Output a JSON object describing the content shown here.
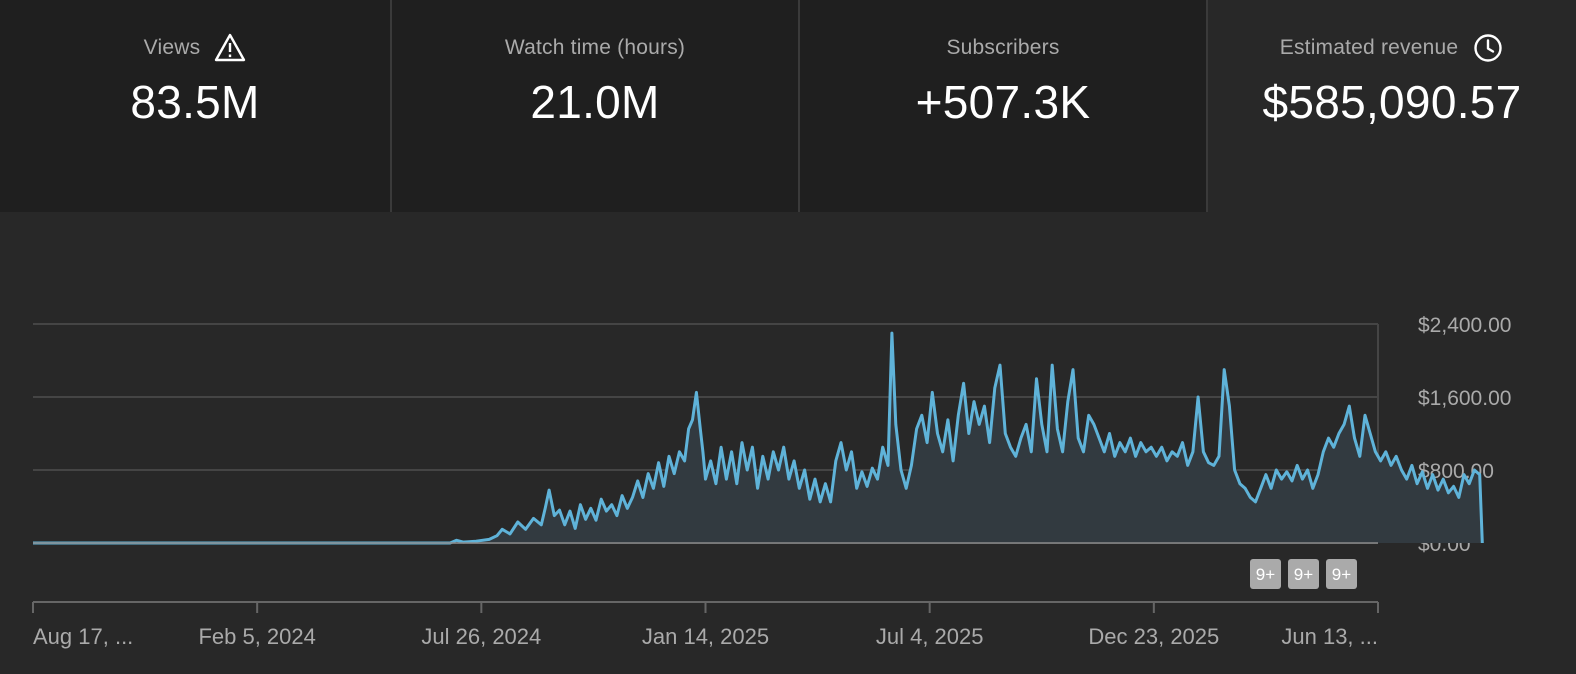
{
  "metrics": [
    {
      "label": "Views",
      "value": "83.5M",
      "icon": "warning-icon"
    },
    {
      "label": "Watch time (hours)",
      "value": "21.0M",
      "icon": ""
    },
    {
      "label": "Subscribers",
      "value": "+507.3K",
      "icon": ""
    },
    {
      "label": "Estimated revenue",
      "value": "$585,090.57",
      "icon": "clock-icon",
      "selected": true
    }
  ],
  "colors": {
    "line": "#5fb3d9",
    "area": "#323a40",
    "grid": "#454545",
    "text": "#aaaaaa",
    "badge_bg": "#aaaaaa",
    "badge_text": "#ffffff"
  },
  "badges": [
    "9+",
    "9+",
    "9+"
  ],
  "chart_data": {
    "type": "area",
    "ylim": [
      0,
      2400
    ],
    "y_ticks": [
      "$0.00",
      "$800.00",
      "$1,600.00",
      "$2,400.00"
    ],
    "x_ticks": [
      "Aug 17, ...",
      "Feb 5, 2024",
      "Jul 26, 2024",
      "Jan 14, 2025",
      "Jul 4, 2025",
      "Dec 23, 2025",
      "Jun 13, ..."
    ],
    "x_tick_days": [
      0,
      172,
      344,
      516,
      688,
      860,
      1032
    ],
    "grid": true,
    "series": [
      {
        "points": [
          [
            0,
            0
          ],
          [
            320,
            0
          ],
          [
            325,
            30
          ],
          [
            330,
            10
          ],
          [
            340,
            20
          ],
          [
            350,
            40
          ],
          [
            356,
            80
          ],
          [
            360,
            150
          ],
          [
            366,
            100
          ],
          [
            372,
            230
          ],
          [
            378,
            150
          ],
          [
            384,
            270
          ],
          [
            390,
            200
          ],
          [
            393,
            380
          ],
          [
            396,
            580
          ],
          [
            400,
            300
          ],
          [
            404,
            360
          ],
          [
            408,
            200
          ],
          [
            412,
            350
          ],
          [
            416,
            160
          ],
          [
            420,
            420
          ],
          [
            424,
            260
          ],
          [
            428,
            380
          ],
          [
            432,
            250
          ],
          [
            436,
            480
          ],
          [
            440,
            350
          ],
          [
            444,
            420
          ],
          [
            448,
            300
          ],
          [
            452,
            520
          ],
          [
            456,
            380
          ],
          [
            460,
            500
          ],
          [
            464,
            680
          ],
          [
            468,
            500
          ],
          [
            472,
            760
          ],
          [
            476,
            600
          ],
          [
            480,
            880
          ],
          [
            484,
            620
          ],
          [
            488,
            950
          ],
          [
            492,
            760
          ],
          [
            496,
            1000
          ],
          [
            500,
            900
          ],
          [
            503,
            1250
          ],
          [
            506,
            1350
          ],
          [
            509,
            1650
          ],
          [
            512,
            1250
          ],
          [
            514,
            1000
          ],
          [
            516,
            700
          ],
          [
            520,
            900
          ],
          [
            524,
            650
          ],
          [
            528,
            1050
          ],
          [
            532,
            700
          ],
          [
            536,
            1000
          ],
          [
            540,
            650
          ],
          [
            544,
            1100
          ],
          [
            548,
            800
          ],
          [
            552,
            1050
          ],
          [
            556,
            600
          ],
          [
            560,
            950
          ],
          [
            564,
            700
          ],
          [
            568,
            1000
          ],
          [
            572,
            800
          ],
          [
            576,
            1050
          ],
          [
            580,
            700
          ],
          [
            584,
            900
          ],
          [
            588,
            600
          ],
          [
            592,
            800
          ],
          [
            596,
            480
          ],
          [
            600,
            700
          ],
          [
            604,
            450
          ],
          [
            608,
            650
          ],
          [
            612,
            450
          ],
          [
            616,
            900
          ],
          [
            620,
            1100
          ],
          [
            624,
            800
          ],
          [
            628,
            1000
          ],
          [
            632,
            600
          ],
          [
            636,
            780
          ],
          [
            640,
            620
          ],
          [
            644,
            820
          ],
          [
            648,
            700
          ],
          [
            652,
            1050
          ],
          [
            656,
            850
          ],
          [
            659,
            2300
          ],
          [
            662,
            1300
          ],
          [
            666,
            800
          ],
          [
            670,
            600
          ],
          [
            674,
            850
          ],
          [
            678,
            1250
          ],
          [
            682,
            1400
          ],
          [
            686,
            1100
          ],
          [
            690,
            1650
          ],
          [
            694,
            1200
          ],
          [
            698,
            1000
          ],
          [
            702,
            1350
          ],
          [
            706,
            900
          ],
          [
            710,
            1400
          ],
          [
            714,
            1750
          ],
          [
            718,
            1200
          ],
          [
            722,
            1550
          ],
          [
            726,
            1300
          ],
          [
            730,
            1500
          ],
          [
            734,
            1100
          ],
          [
            738,
            1700
          ],
          [
            742,
            1950
          ],
          [
            746,
            1200
          ],
          [
            750,
            1050
          ],
          [
            754,
            950
          ],
          [
            758,
            1150
          ],
          [
            762,
            1300
          ],
          [
            766,
            1000
          ],
          [
            770,
            1800
          ],
          [
            774,
            1300
          ],
          [
            778,
            1000
          ],
          [
            782,
            1950
          ],
          [
            786,
            1250
          ],
          [
            790,
            1000
          ],
          [
            794,
            1550
          ],
          [
            798,
            1900
          ],
          [
            802,
            1150
          ],
          [
            806,
            1000
          ],
          [
            810,
            1400
          ],
          [
            814,
            1300
          ],
          [
            818,
            1150
          ],
          [
            822,
            1000
          ],
          [
            826,
            1200
          ],
          [
            830,
            950
          ],
          [
            834,
            1100
          ],
          [
            838,
            1000
          ],
          [
            842,
            1150
          ],
          [
            846,
            950
          ],
          [
            850,
            1100
          ],
          [
            854,
            1000
          ],
          [
            858,
            1050
          ],
          [
            862,
            950
          ],
          [
            866,
            1050
          ],
          [
            870,
            900
          ],
          [
            874,
            1000
          ],
          [
            878,
            950
          ],
          [
            882,
            1100
          ],
          [
            886,
            850
          ],
          [
            890,
            1000
          ],
          [
            894,
            1600
          ],
          [
            898,
            1000
          ],
          [
            902,
            880
          ],
          [
            906,
            850
          ],
          [
            910,
            950
          ],
          [
            914,
            1900
          ],
          [
            918,
            1500
          ],
          [
            922,
            800
          ],
          [
            926,
            650
          ],
          [
            930,
            600
          ],
          [
            934,
            500
          ],
          [
            938,
            450
          ],
          [
            942,
            600
          ],
          [
            946,
            750
          ],
          [
            950,
            600
          ],
          [
            954,
            800
          ],
          [
            958,
            700
          ],
          [
            962,
            780
          ],
          [
            966,
            680
          ],
          [
            970,
            850
          ],
          [
            974,
            700
          ],
          [
            978,
            800
          ],
          [
            982,
            600
          ],
          [
            986,
            750
          ],
          [
            990,
            1000
          ],
          [
            994,
            1150
          ],
          [
            998,
            1050
          ],
          [
            1002,
            1200
          ],
          [
            1006,
            1300
          ],
          [
            1010,
            1500
          ],
          [
            1014,
            1150
          ],
          [
            1018,
            950
          ],
          [
            1022,
            1400
          ],
          [
            1026,
            1200
          ],
          [
            1030,
            1000
          ],
          [
            1034,
            900
          ],
          [
            1038,
            1000
          ],
          [
            1042,
            850
          ],
          [
            1046,
            950
          ],
          [
            1050,
            800
          ],
          [
            1054,
            700
          ],
          [
            1058,
            850
          ],
          [
            1062,
            650
          ],
          [
            1066,
            780
          ],
          [
            1070,
            600
          ],
          [
            1074,
            750
          ],
          [
            1078,
            580
          ],
          [
            1082,
            700
          ],
          [
            1086,
            550
          ],
          [
            1090,
            620
          ],
          [
            1094,
            500
          ],
          [
            1098,
            750
          ],
          [
            1102,
            650
          ],
          [
            1106,
            800
          ],
          [
            1110,
            750
          ],
          [
            1112,
            0
          ]
        ]
      }
    ]
  }
}
